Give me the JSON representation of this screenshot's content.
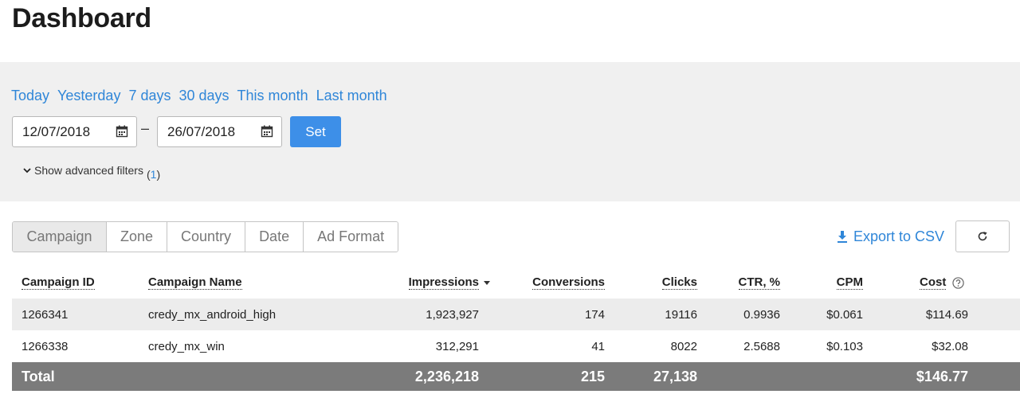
{
  "page": {
    "title": "Dashboard"
  },
  "filters": {
    "quick_ranges": [
      "Today",
      "Yesterday",
      "7 days",
      "30 days",
      "This month",
      "Last month"
    ],
    "date_from": "12/07/2018",
    "date_to": "26/07/2018",
    "separator": "–",
    "set_label": "Set",
    "advanced_label": "Show advanced filters",
    "advanced_count_open": "(",
    "advanced_count": "1",
    "advanced_count_close": ")"
  },
  "grouping": {
    "tabs": [
      "Campaign",
      "Zone",
      "Country",
      "Date",
      "Ad Format"
    ],
    "active": "Campaign"
  },
  "actions": {
    "export_label": "Export to CSV"
  },
  "table": {
    "columns": {
      "campaign_id": "Campaign ID",
      "campaign_name": "Campaign Name",
      "impressions": "Impressions",
      "conversions": "Conversions",
      "clicks": "Clicks",
      "ctr": "CTR, %",
      "cpm": "CPM",
      "cost": "Cost"
    },
    "rows": [
      {
        "campaign_id": "1266341",
        "campaign_name": "credy_mx_android_high",
        "impressions": "1,923,927",
        "conversions": "174",
        "clicks": "19116",
        "ctr": "0.9936",
        "cpm": "$0.061",
        "cost": "$114.69"
      },
      {
        "campaign_id": "1266338",
        "campaign_name": "credy_mx_win",
        "impressions": "312,291",
        "conversions": "41",
        "clicks": "8022",
        "ctr": "2.5688",
        "cpm": "$0.103",
        "cost": "$32.08"
      }
    ],
    "total": {
      "label": "Total",
      "impressions": "2,236,218",
      "conversions": "215",
      "clicks": "27,138",
      "cost": "$146.77"
    }
  },
  "colors": {
    "accent": "#3d8fe8",
    "link": "#2f86d8",
    "panel": "#f0f0f0",
    "total_bar": "#7b7b7b"
  },
  "icons": {
    "date": "calendar-icon",
    "advanced": "chevron-down-icon",
    "export": "download-icon",
    "refresh": "refresh-icon",
    "help": "help-circle-icon",
    "sort": "sort-desc-icon"
  }
}
